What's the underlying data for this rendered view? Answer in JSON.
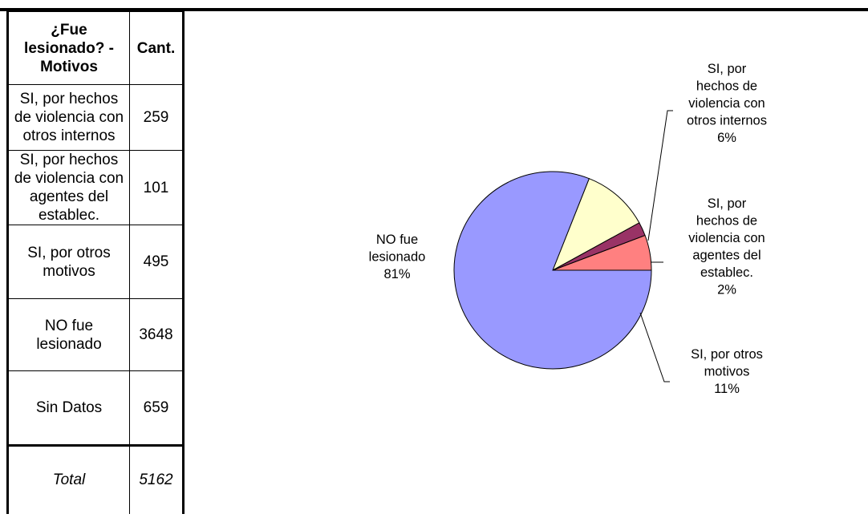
{
  "table": {
    "header": {
      "category": "¿Fue lesionado? - Motivos",
      "count": "Cant."
    },
    "rows": [
      {
        "category": "SI, por hechos de violencia con otros internos",
        "count": "259"
      },
      {
        "category": "SI, por hechos de violencia con agentes del establec.",
        "count": "101"
      },
      {
        "category": "SI, por otros motivos",
        "count": "495"
      },
      {
        "category": "NO fue lesionado",
        "count": "3648"
      },
      {
        "category": "Sin Datos",
        "count": "659"
      }
    ],
    "total": {
      "category": "Total",
      "count": "5162"
    }
  },
  "chart_data": {
    "type": "pie",
    "slices": [
      {
        "label": [
          "SI, por",
          "hechos de",
          "violencia con",
          "otros internos",
          "6%"
        ],
        "value": 259,
        "percent": 6,
        "color": "#ff8080"
      },
      {
        "label": [
          "SI, por",
          "hechos de",
          "violencia con",
          "agentes del",
          "establec.",
          "2%"
        ],
        "value": 101,
        "percent": 2,
        "color": "#993366"
      },
      {
        "label": [
          "SI, por otros",
          "motivos",
          "11%"
        ],
        "value": 495,
        "percent": 11,
        "color": "#ffffcc"
      },
      {
        "label": [
          "NO fue",
          "lesionado",
          "81%"
        ],
        "value": 3648,
        "percent": 81,
        "color": "#9999ff"
      }
    ],
    "start_angle_deg": 0,
    "direction": "counterclockwise"
  }
}
